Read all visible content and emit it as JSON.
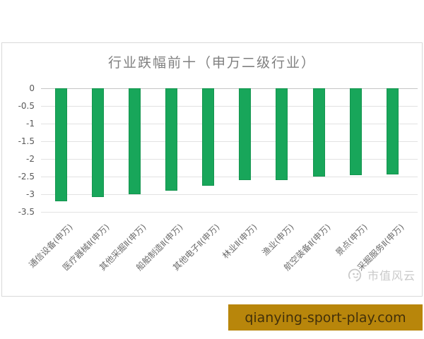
{
  "chart_data": {
    "type": "bar",
    "title": "行业跌幅前十（申万二级行业）",
    "categories": [
      "通信设备(申万)",
      "医疗器械Ⅱ(申万)",
      "其他采掘Ⅱ(申万)",
      "船舶制造Ⅱ(申万)",
      "其他电子Ⅱ(申万)",
      "林业Ⅱ(申万)",
      "渔业(申万)",
      "航空装备Ⅱ(申万)",
      "景点(申万)",
      "采掘服务Ⅱ(申万)"
    ],
    "values": [
      -3.2,
      -3.07,
      -3.0,
      -2.9,
      -2.75,
      -2.6,
      -2.59,
      -2.5,
      -2.46,
      -2.43
    ],
    "xlabel": "",
    "ylabel": "",
    "ylim": [
      -3.5,
      0
    ],
    "yticks": [
      0,
      -0.5,
      -1,
      -1.5,
      -2,
      -2.5,
      -3,
      -3.5
    ],
    "grid": true,
    "legend": false,
    "bar_color": "#18A65A",
    "bar_border_color": "#14954f"
  },
  "watermark": {
    "text": "市值风云"
  },
  "banner": {
    "text": "qianying-sport-play.com",
    "background": "#B8860B",
    "text_color": "#42300b"
  }
}
